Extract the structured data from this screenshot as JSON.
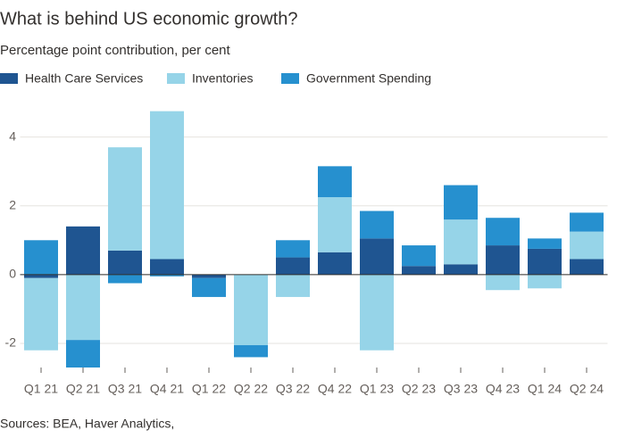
{
  "chart_data": {
    "type": "stacked-bar",
    "title": "What is behind US economic growth?",
    "subtitle": "Percentage point contribution, per cent",
    "source": "Sources: BEA, Haver Analytics,",
    "categories": [
      "Q1 21",
      "Q2 21",
      "Q3 21",
      "Q4 21",
      "Q1 22",
      "Q2 22",
      "Q3 22",
      "Q4 22",
      "Q1 23",
      "Q2 23",
      "Q3 23",
      "Q4 23",
      "Q1 24",
      "Q2 24"
    ],
    "series": [
      {
        "name": "Health Care Services",
        "color": "#1f5591",
        "values": [
          -0.1,
          1.4,
          0.7,
          0.45,
          -0.1,
          0,
          0.5,
          0.65,
          1.05,
          0.25,
          0.3,
          0.85,
          0.75,
          0.45
        ]
      },
      {
        "name": "Inventories",
        "color": "#96d4e8",
        "values": [
          -2.1,
          -1.9,
          3.0,
          4.3,
          0,
          -2.05,
          -0.65,
          1.6,
          -2.2,
          0,
          1.3,
          -0.45,
          -0.4,
          0.8
        ]
      },
      {
        "name": "Government Spending",
        "color": "#2690cf",
        "values": [
          1.0,
          -0.8,
          -0.25,
          -0.05,
          -0.55,
          -0.35,
          0.5,
          0.9,
          0.8,
          0.6,
          1.0,
          0.8,
          0.3,
          0.55
        ]
      }
    ],
    "ylim": [
      -2.7,
      5
    ],
    "yticks": [
      -2,
      0,
      2,
      4
    ],
    "grid": true
  }
}
